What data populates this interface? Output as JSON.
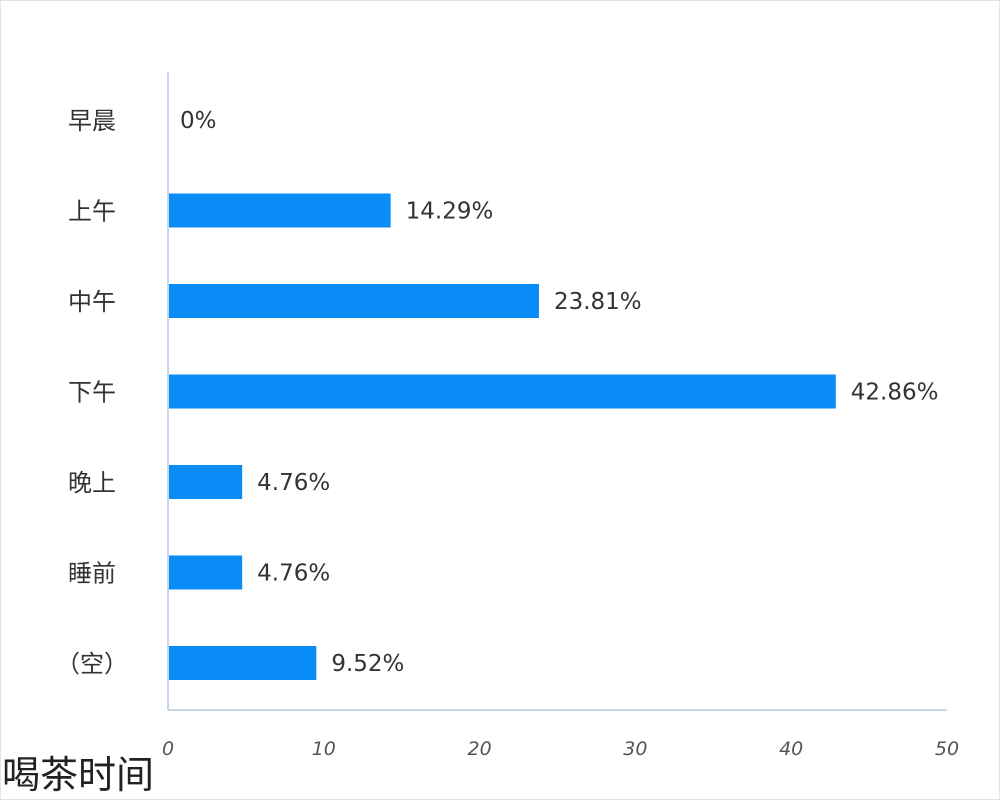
{
  "chart_data": {
    "type": "bar",
    "orientation": "horizontal",
    "title": "喝茶时间",
    "categories": [
      "早晨",
      "上午",
      "中午",
      "下午",
      "晚上",
      "睡前",
      "（空）"
    ],
    "values": [
      0,
      14.29,
      23.81,
      42.86,
      4.76,
      4.76,
      9.52
    ],
    "value_labels": [
      "0%",
      "14.29%",
      "23.81%",
      "42.86%",
      "4.76%",
      "4.76%",
      "9.52%"
    ],
    "xticks": [
      0,
      10,
      20,
      30,
      40,
      50
    ],
    "xlim": [
      0,
      50
    ],
    "xlabel": "",
    "ylabel": "",
    "grid": false,
    "legend": "none",
    "colors": {
      "bar": "#0a8cf7",
      "axis": "#c9d6ea"
    }
  }
}
